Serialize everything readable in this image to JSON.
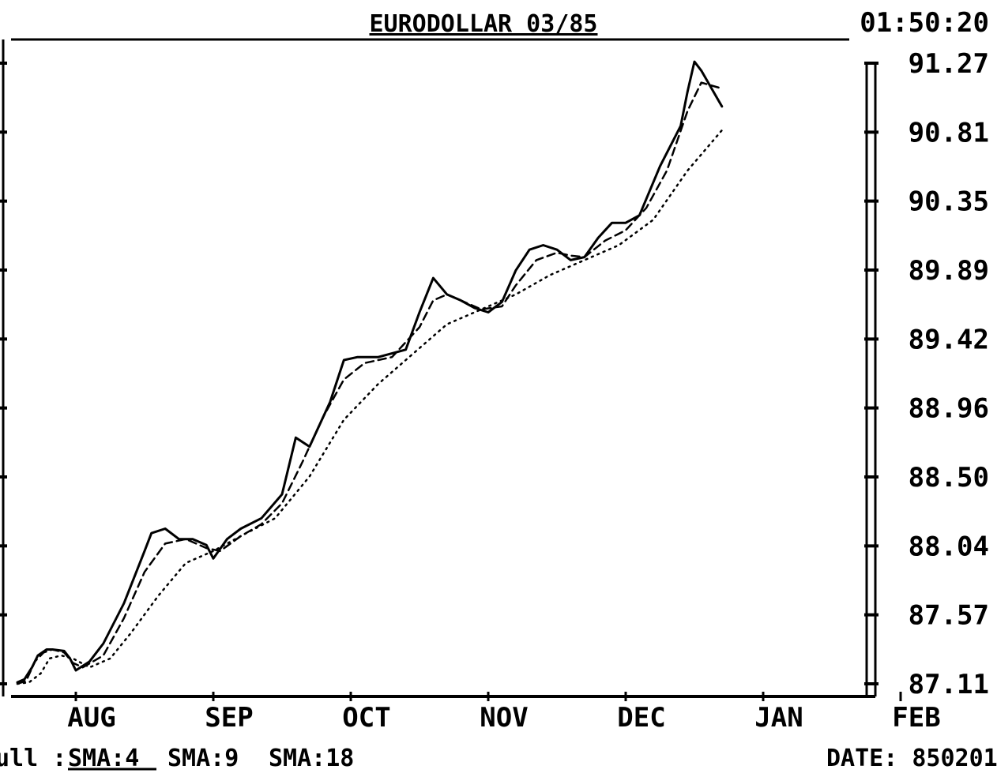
{
  "chart_data": {
    "type": "line",
    "title": "EURODOLLAR 03/85",
    "time": "01:50:20",
    "date_label": "DATE: 850201",
    "x_months": [
      "AUG",
      "SEP",
      "OCT",
      "NOV",
      "DEC",
      "JAN",
      "FEB"
    ],
    "y_ticks": [
      "91.27",
      "90.81",
      "90.35",
      "89.89",
      "89.42",
      "88.96",
      "88.50",
      "88.04",
      "87.57",
      "87.11"
    ],
    "ylim": [
      87.11,
      91.27
    ],
    "footer": {
      "prefix": "ull :",
      "sma4": "SMA:4",
      "sma9": "SMA:9",
      "sma18": "SMA:18"
    },
    "series": [
      {
        "name": "SMA:4",
        "style": "solid",
        "points": [
          [
            0.0,
            87.12
          ],
          [
            0.12,
            87.14
          ],
          [
            0.25,
            87.22
          ],
          [
            0.35,
            87.3
          ],
          [
            0.5,
            87.34
          ],
          [
            0.6,
            87.34
          ],
          [
            0.8,
            87.33
          ],
          [
            0.9,
            87.28
          ],
          [
            1.0,
            87.2
          ],
          [
            1.1,
            87.26
          ],
          [
            1.2,
            87.38
          ],
          [
            1.35,
            87.65
          ],
          [
            1.5,
            88.0
          ],
          [
            1.55,
            88.12
          ],
          [
            1.65,
            88.15
          ],
          [
            1.75,
            88.08
          ],
          [
            1.85,
            88.08
          ],
          [
            1.95,
            88.04
          ],
          [
            2.0,
            87.95
          ],
          [
            2.1,
            88.08
          ],
          [
            2.2,
            88.15
          ],
          [
            2.35,
            88.22
          ],
          [
            2.5,
            88.38
          ],
          [
            2.6,
            88.76
          ],
          [
            2.7,
            88.7
          ],
          [
            2.85,
            89.0
          ],
          [
            2.95,
            89.28
          ],
          [
            3.05,
            89.3
          ],
          [
            3.2,
            89.3
          ],
          [
            3.4,
            89.35
          ],
          [
            3.5,
            89.6
          ],
          [
            3.6,
            89.83
          ],
          [
            3.7,
            89.72
          ],
          [
            3.8,
            89.68
          ],
          [
            3.9,
            89.63
          ],
          [
            4.0,
            89.6
          ],
          [
            4.1,
            89.67
          ],
          [
            4.2,
            89.88
          ],
          [
            4.3,
            90.02
          ],
          [
            4.4,
            90.05
          ],
          [
            4.5,
            90.02
          ],
          [
            4.6,
            89.95
          ],
          [
            4.7,
            89.97
          ],
          [
            4.8,
            90.1
          ],
          [
            4.9,
            90.2
          ],
          [
            5.0,
            90.2
          ],
          [
            5.1,
            90.25
          ],
          [
            5.25,
            90.58
          ],
          [
            5.4,
            90.85
          ],
          [
            5.45,
            91.08
          ],
          [
            5.5,
            91.28
          ],
          [
            5.55,
            91.22
          ],
          [
            5.7,
            90.98
          ]
        ]
      },
      {
        "name": "SMA:9",
        "style": "dashed",
        "points": [
          [
            0.0,
            87.11
          ],
          [
            0.15,
            87.13
          ],
          [
            0.3,
            87.26
          ],
          [
            0.45,
            87.32
          ],
          [
            0.6,
            87.34
          ],
          [
            0.8,
            87.32
          ],
          [
            0.95,
            87.25
          ],
          [
            1.05,
            87.22
          ],
          [
            1.2,
            87.3
          ],
          [
            1.35,
            87.55
          ],
          [
            1.5,
            87.86
          ],
          [
            1.65,
            88.05
          ],
          [
            1.8,
            88.08
          ],
          [
            1.95,
            88.02
          ],
          [
            2.05,
            88.0
          ],
          [
            2.2,
            88.1
          ],
          [
            2.35,
            88.18
          ],
          [
            2.5,
            88.32
          ],
          [
            2.65,
            88.6
          ],
          [
            2.8,
            88.9
          ],
          [
            2.95,
            89.15
          ],
          [
            3.1,
            89.26
          ],
          [
            3.3,
            89.3
          ],
          [
            3.5,
            89.5
          ],
          [
            3.6,
            89.68
          ],
          [
            3.7,
            89.72
          ],
          [
            3.8,
            89.68
          ],
          [
            3.95,
            89.62
          ],
          [
            4.1,
            89.64
          ],
          [
            4.2,
            89.78
          ],
          [
            4.35,
            89.95
          ],
          [
            4.5,
            90.0
          ],
          [
            4.6,
            89.98
          ],
          [
            4.7,
            89.97
          ],
          [
            4.85,
            90.08
          ],
          [
            5.0,
            90.15
          ],
          [
            5.15,
            90.3
          ],
          [
            5.3,
            90.55
          ],
          [
            5.45,
            90.95
          ],
          [
            5.55,
            91.14
          ],
          [
            5.7,
            91.1
          ]
        ]
      },
      {
        "name": "SMA:18",
        "style": "dotted",
        "points": [
          [
            0.0,
            87.11
          ],
          [
            0.2,
            87.12
          ],
          [
            0.4,
            87.18
          ],
          [
            0.55,
            87.28
          ],
          [
            0.75,
            87.3
          ],
          [
            0.95,
            87.28
          ],
          [
            1.1,
            87.22
          ],
          [
            1.25,
            87.28
          ],
          [
            1.4,
            87.45
          ],
          [
            1.6,
            87.7
          ],
          [
            1.8,
            87.92
          ],
          [
            2.0,
            88.0
          ],
          [
            2.2,
            88.1
          ],
          [
            2.45,
            88.22
          ],
          [
            2.7,
            88.5
          ],
          [
            2.95,
            88.88
          ],
          [
            3.2,
            89.12
          ],
          [
            3.45,
            89.32
          ],
          [
            3.7,
            89.52
          ],
          [
            3.95,
            89.62
          ],
          [
            4.2,
            89.72
          ],
          [
            4.45,
            89.85
          ],
          [
            4.7,
            89.95
          ],
          [
            4.95,
            90.05
          ],
          [
            5.2,
            90.22
          ],
          [
            5.45,
            90.55
          ],
          [
            5.7,
            90.82
          ]
        ]
      }
    ]
  }
}
